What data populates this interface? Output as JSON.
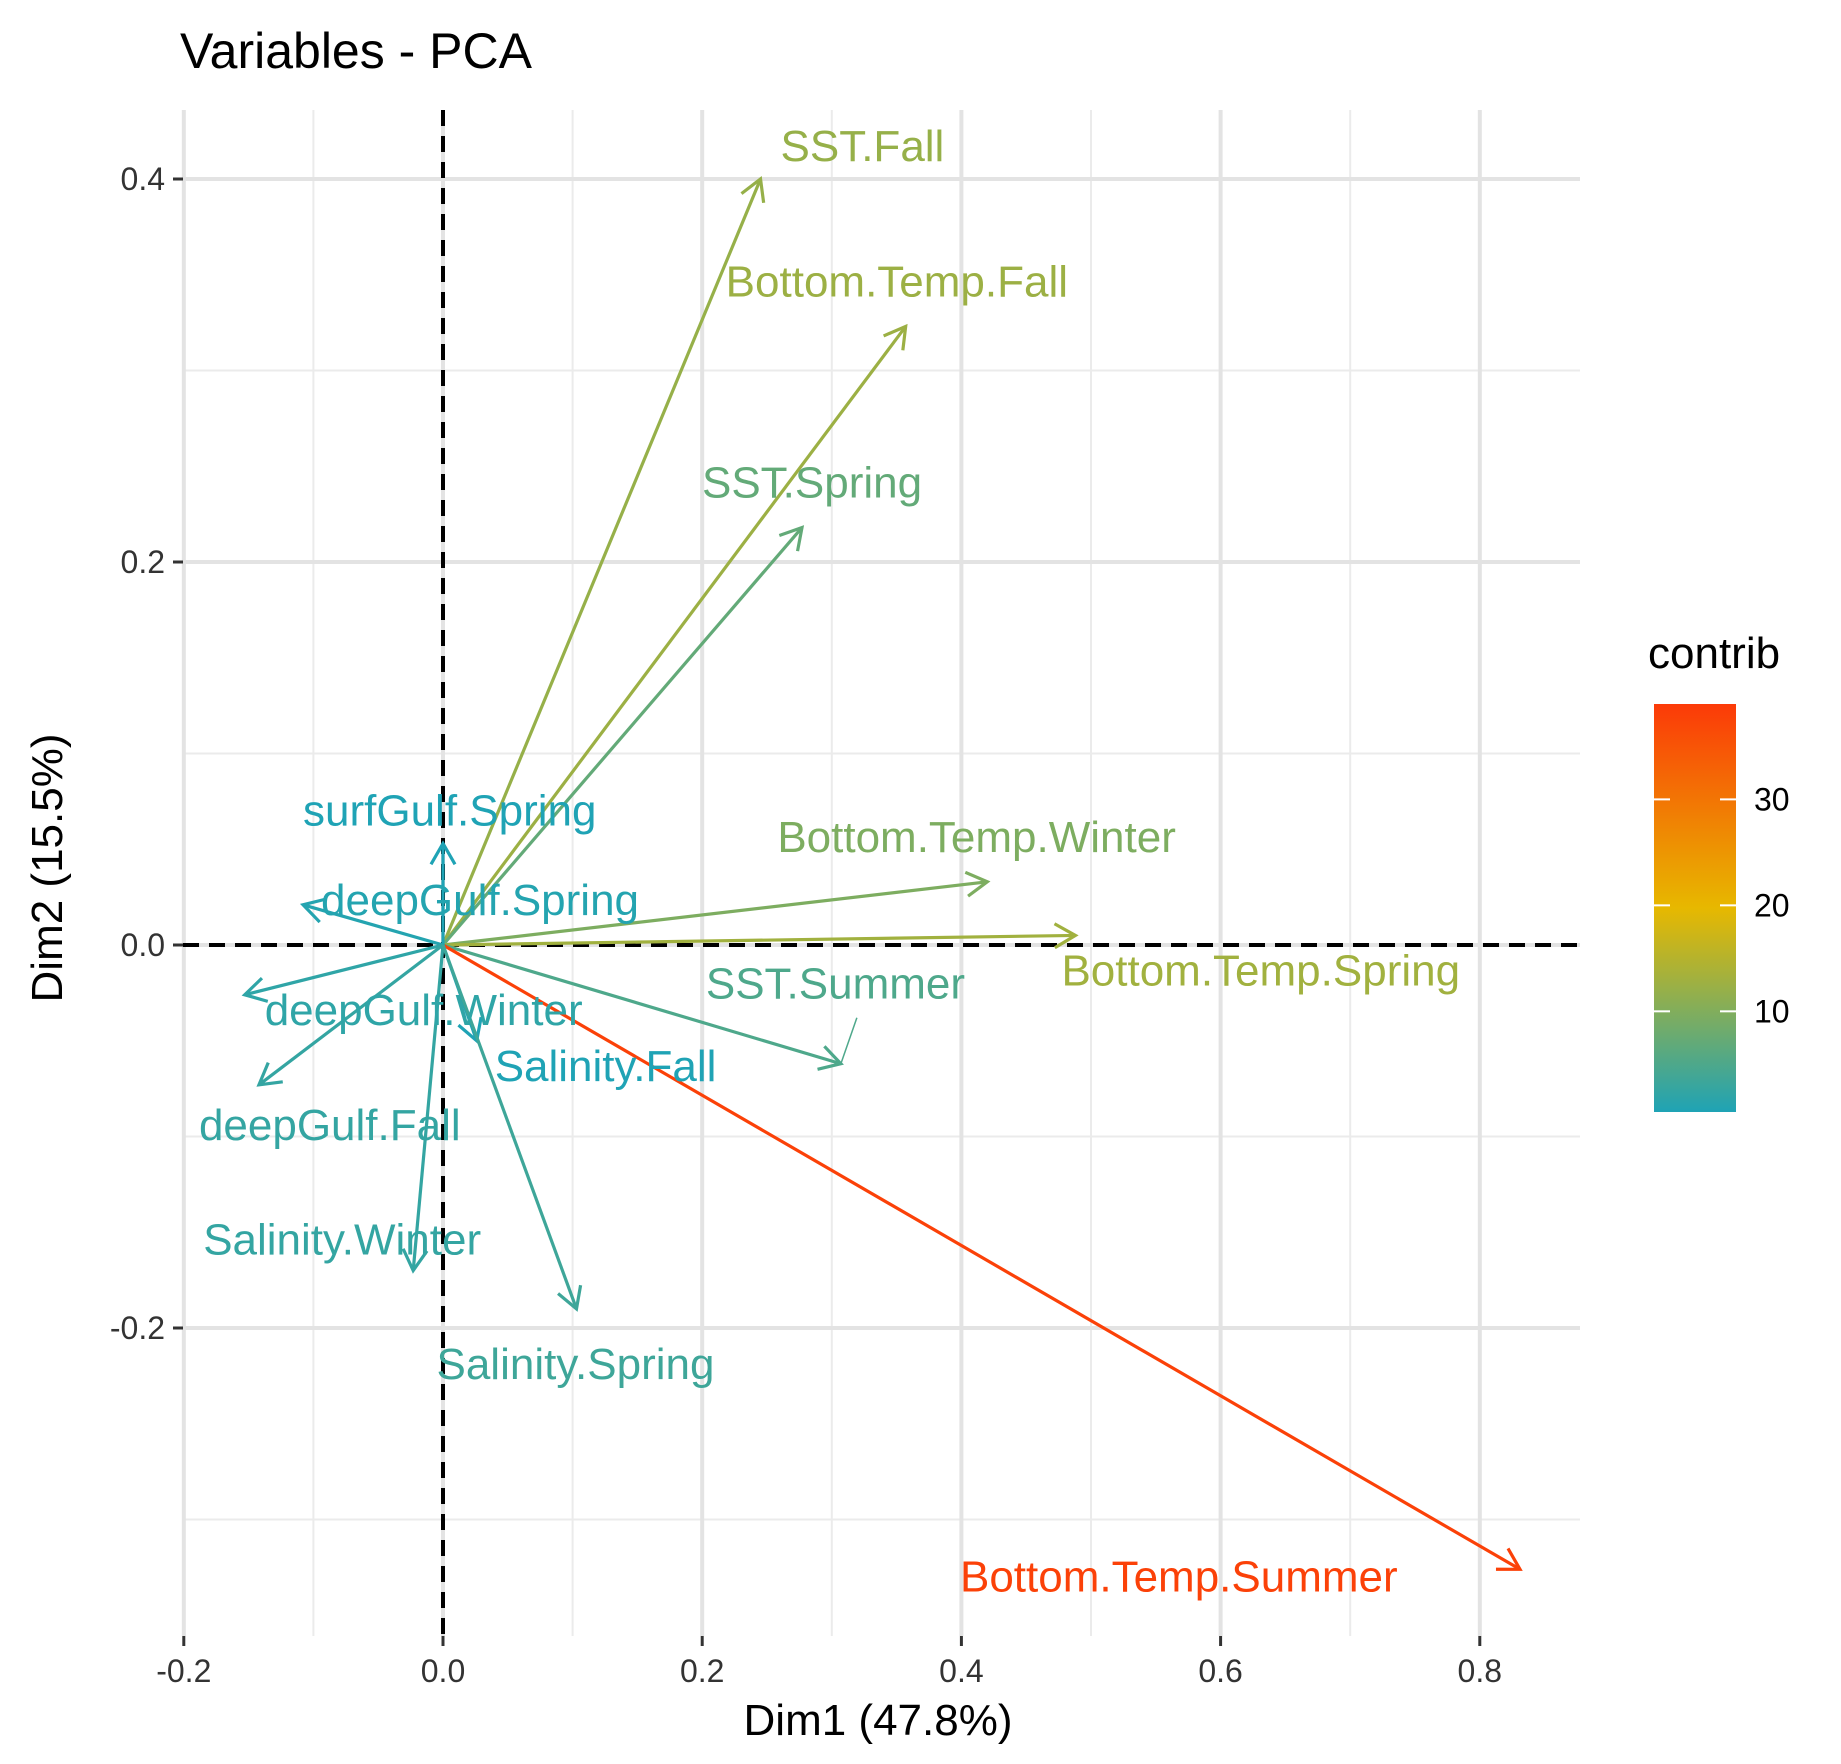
{
  "chart_data": {
    "type": "scatter",
    "subtype": "pca-variable-correlation-arrows",
    "title": "Variables - PCA",
    "xlabel": "Dim1 (47.8%)",
    "ylabel": "Dim2 (15.5%)",
    "xlim": [
      -0.2,
      0.875
    ],
    "ylim": [
      -0.36,
      0.44
    ],
    "x_ticks": [
      -0.2,
      0.0,
      0.2,
      0.4,
      0.6,
      0.8
    ],
    "x_tick_labels": [
      "-0.2",
      "0.0",
      "0.2",
      "0.4",
      "0.6",
      "0.8"
    ],
    "y_ticks": [
      -0.2,
      0.0,
      0.2,
      0.4
    ],
    "y_tick_labels": [
      "-0.2",
      "0.0",
      "0.2",
      "0.4"
    ],
    "grid": true,
    "reference_lines": {
      "x": 0,
      "y": 0,
      "style": "dashed"
    },
    "variables": [
      {
        "name": "SST.Fall",
        "x": 0.245,
        "y": 0.4,
        "contrib": 12.0
      },
      {
        "name": "Bottom.Temp.Fall",
        "x": 0.357,
        "y": 0.323,
        "contrib": 12.5
      },
      {
        "name": "SST.Spring",
        "x": 0.277,
        "y": 0.218,
        "contrib": 7.0
      },
      {
        "name": "Bottom.Temp.Winter",
        "x": 0.42,
        "y": 0.033,
        "contrib": 9.5
      },
      {
        "name": "Bottom.Temp.Spring",
        "x": 0.488,
        "y": 0.005,
        "contrib": 13.0
      },
      {
        "name": "SST.Summer",
        "x": 0.307,
        "y": -0.062,
        "contrib": 5.0
      },
      {
        "name": "Bottom.Temp.Summer",
        "x": 0.831,
        "y": -0.326,
        "contrib": 38.0
      },
      {
        "name": "surfGulf.Spring",
        "x": 0.0,
        "y": 0.053,
        "contrib": 0.5
      },
      {
        "name": "deepGulf.Spring",
        "x": -0.108,
        "y": 0.021,
        "contrib": 1.0
      },
      {
        "name": "deepGulf.Winter",
        "x": -0.153,
        "y": -0.026,
        "contrib": 2.0
      },
      {
        "name": "Salinity.Fall",
        "x": 0.026,
        "y": -0.05,
        "contrib": 0.5
      },
      {
        "name": "deepGulf.Fall",
        "x": -0.142,
        "y": -0.073,
        "contrib": 2.5
      },
      {
        "name": "Salinity.Winter",
        "x": -0.023,
        "y": -0.17,
        "contrib": 2.5
      },
      {
        "name": "Salinity.Spring",
        "x": 0.103,
        "y": -0.19,
        "contrib": 3.5
      }
    ],
    "legend": {
      "title": "contrib",
      "placement": "right",
      "range": [
        0.5,
        39
      ],
      "ticks": [
        10,
        20,
        30
      ],
      "tick_labels": [
        "10",
        "20",
        "30"
      ],
      "colors": [
        "#1FA3B5",
        "#E7B800",
        "#FC3A08"
      ]
    }
  }
}
